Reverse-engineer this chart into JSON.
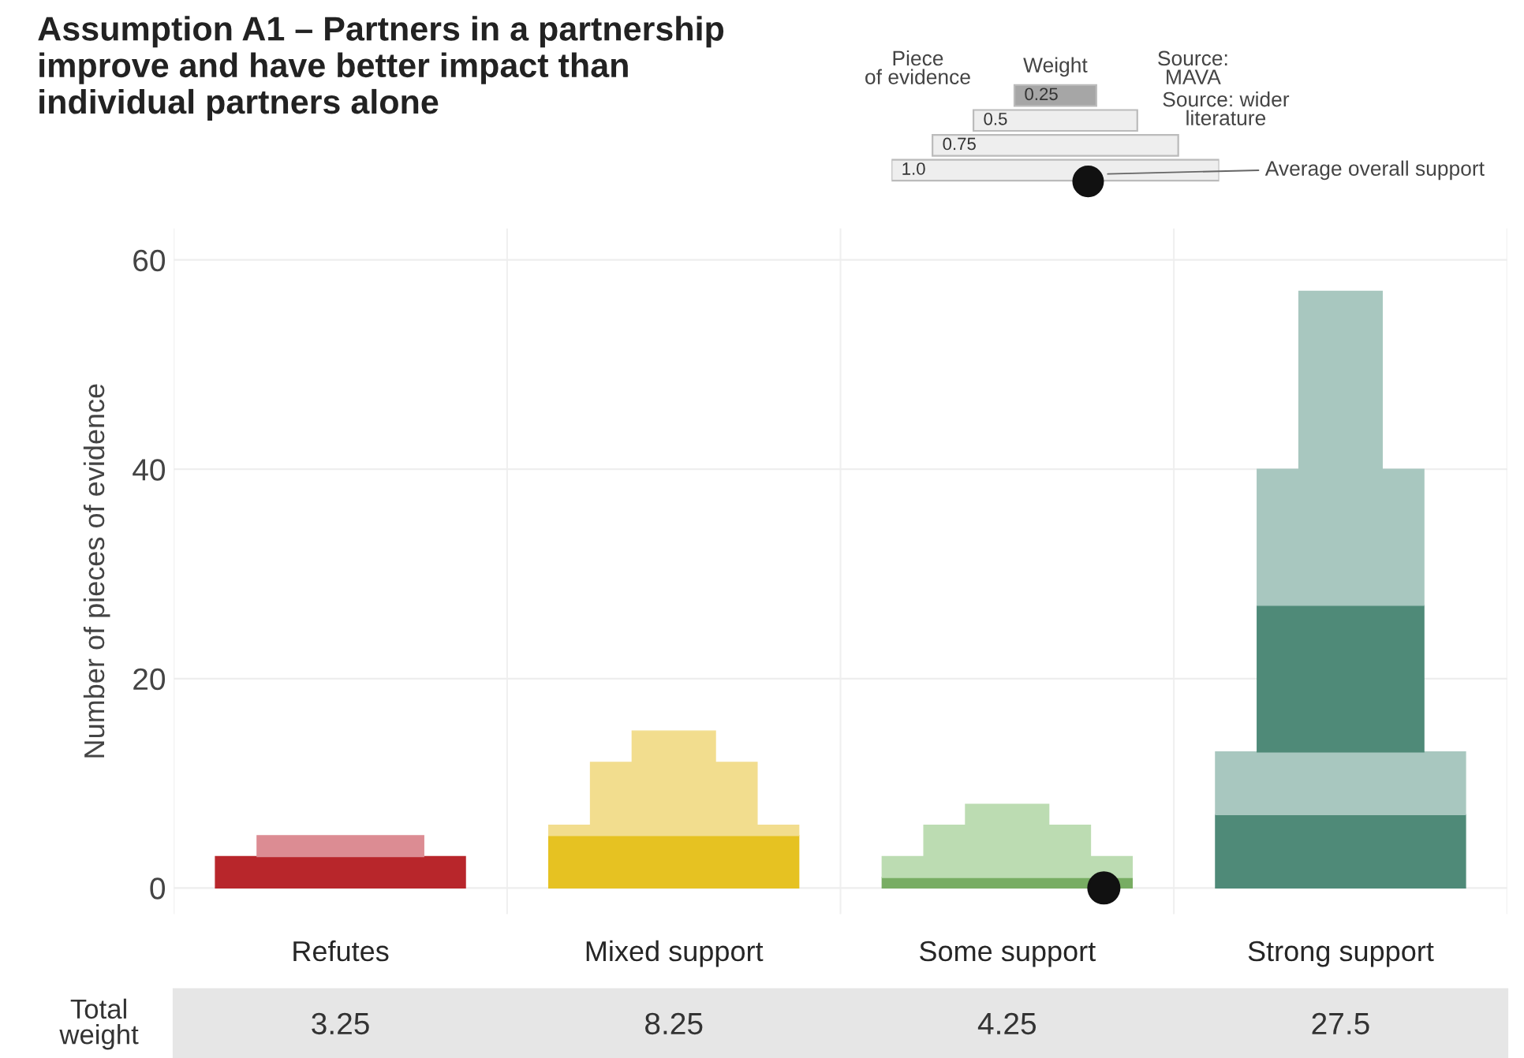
{
  "chart_data": [
    {
      "type": "bar",
      "title": "Assumption A1 – Partners in a partnership improve and have better impact than individual partners alone",
      "ylabel": "Number of pieces of evidence",
      "stacked": true,
      "categories": [
        "Refutes",
        "Mixed support",
        "Some support",
        "Strong support"
      ],
      "ylim": [
        -2.5,
        63
      ],
      "yticks": [
        0,
        20,
        40,
        60
      ],
      "grid": "y",
      "series": [
        {
          "colors": [
            "#b8262b",
            "#e6c222",
            "#78ad63",
            "#4f8a78"
          ],
          "values": [
            3,
            5,
            1,
            7
          ]
        },
        {
          "colors": [
            "#dc8c93",
            "#f2dd8e",
            "#bcdcb2",
            "#a8c7bf"
          ],
          "values": [
            0,
            1,
            2,
            6
          ]
        },
        {
          "colors": [
            "#b8262b",
            "#e6c222",
            "#78ad63",
            "#4f8a78"
          ],
          "values": [
            0,
            0,
            0,
            14
          ]
        },
        {
          "colors": [
            "#dc8c93",
            "#f2dd8e",
            "#bcdcb2",
            "#a8c7bf"
          ],
          "values": [
            2,
            6,
            3,
            13
          ]
        },
        {
          "colors": [
            "#dc8c93",
            "#f2dd8e",
            "#bcdcb2",
            "#a8c7bf"
          ],
          "values": [
            0,
            3,
            2,
            17
          ]
        }
      ],
      "annotations": [
        "Total weight",
        "3.25",
        "8.25",
        "4.25",
        "27.5"
      ]
    },
    {
      "type": "other",
      "annotations": [
        "0.25",
        "0.5",
        "0.75",
        "1.0",
        "Piece\nof evidence",
        "Weight",
        "Source:\nMAVA",
        "Source: wider\nliterature",
        "Average overall support"
      ]
    }
  ]
}
